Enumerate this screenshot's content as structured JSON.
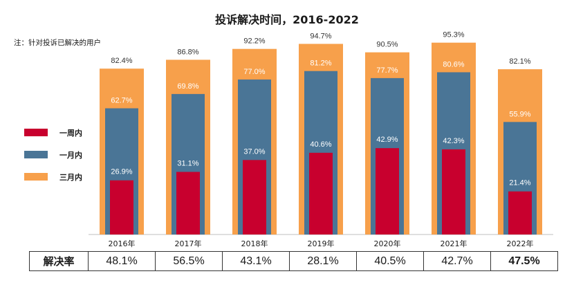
{
  "title": "投诉解决时间，2016-2022",
  "note": "注：针对投诉已解决的用户",
  "colors": {
    "week": "#c8002e",
    "month": "#4a7596",
    "quarter": "#f7a04b"
  },
  "chart_data": {
    "type": "bar",
    "title": "投诉解决时间，2016-2022",
    "categories": [
      "2016年",
      "2017年",
      "2018年",
      "2019年",
      "2020年",
      "2021年",
      "2022年"
    ],
    "ylim": [
      0,
      100
    ],
    "series": [
      {
        "name": "三月内",
        "values": [
          82.4,
          86.8,
          92.2,
          94.7,
          90.5,
          95.3,
          82.1
        ]
      },
      {
        "name": "一月内",
        "values": [
          62.7,
          69.8,
          77.0,
          81.2,
          77.7,
          80.6,
          55.9
        ]
      },
      {
        "name": "一周内",
        "values": [
          26.9,
          31.1,
          37.0,
          40.6,
          42.9,
          42.3,
          21.4
        ]
      }
    ],
    "legend": [
      "一周内",
      "一月内",
      "三月内"
    ],
    "legend_position": "left",
    "value_suffix": "%"
  },
  "table": {
    "header": "解决率",
    "values": [
      "48.1%",
      "56.5%",
      "43.1%",
      "28.1%",
      "40.5%",
      "42.7%",
      "47.5%"
    ]
  }
}
